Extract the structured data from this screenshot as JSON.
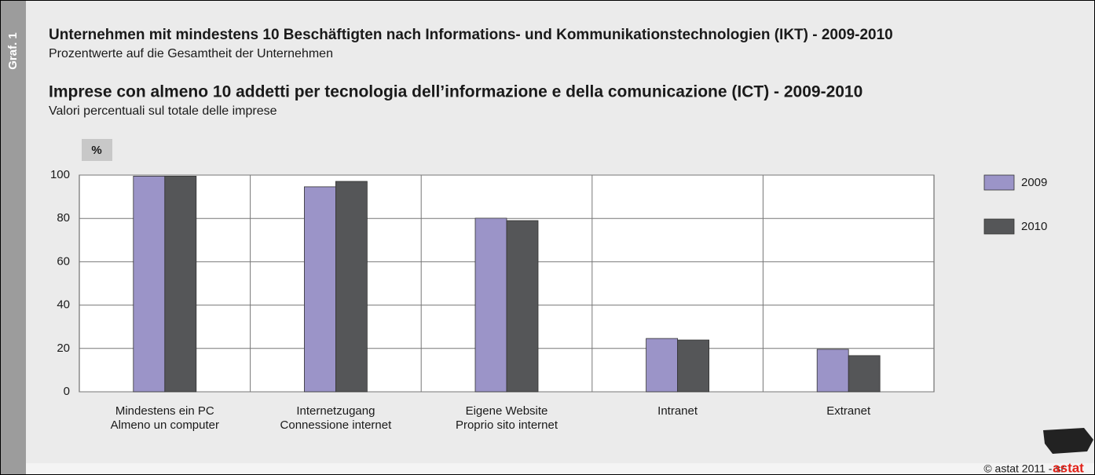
{
  "side_label": "Graf. 1",
  "chart_data": {
    "type": "bar",
    "title": "Unternehmen mit mindestens 10 Beschäftigten nach Informations- und Kommunikationstechnologien (IKT) - 2009-2010",
    "subtitle": "Prozentwerte auf die Gesamtheit der Unternehmen",
    "title_it": "Imprese con almeno 10 addetti per tecnologia dell’informazione e della comunicazione (ICT) - 2009-2010",
    "subtitle_it": "Valori percentuali sul totale delle imprese",
    "y_label": "%",
    "categories": [
      [
        "Mindestens ein PC",
        "Almeno un computer"
      ],
      [
        "Internetzugang",
        "Connessione internet"
      ],
      [
        "Eigene Website",
        "Proprio sito internet"
      ],
      [
        "Intranet"
      ],
      [
        "Extranet"
      ]
    ],
    "series": [
      {
        "name": "2009",
        "color": "#9b94c8",
        "values": [
          99.5,
          94.6,
          80.1,
          24.6,
          19.6
        ]
      },
      {
        "name": "2010",
        "color": "#555658",
        "values": [
          99.5,
          97.1,
          79.0,
          23.9,
          16.7
        ]
      }
    ],
    "ylim": [
      0,
      100
    ],
    "yticks": [
      0,
      20,
      40,
      60,
      80,
      100
    ],
    "grid": true,
    "legend": "right"
  },
  "footer": {
    "credit": "© astat 2011 - sr",
    "logo": "astat"
  }
}
